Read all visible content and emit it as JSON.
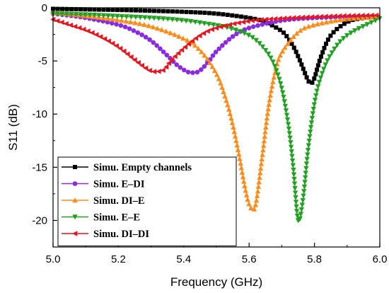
{
  "chart_data": {
    "type": "line",
    "xlabel": "Frequency (GHz)",
    "ylabel": "S11 (dB)",
    "xlim": [
      5.0,
      6.0
    ],
    "ylim": [
      -22.5,
      0
    ],
    "xticks": [
      "5.0",
      "5.2",
      "5.4",
      "5.6",
      "5.8",
      "6.0"
    ],
    "yticks": [
      "0",
      "-5",
      "-10",
      "-15",
      "-20"
    ],
    "grid": false,
    "legend_position": "lower-left",
    "series": [
      {
        "name": "Simu. Empty channels",
        "color": "#000000",
        "marker": "square",
        "x": [
          5.0,
          5.1,
          5.2,
          5.3,
          5.4,
          5.5,
          5.6,
          5.65,
          5.7,
          5.72,
          5.74,
          5.76,
          5.78,
          5.79,
          5.8,
          5.82,
          5.85,
          5.9,
          5.95,
          6.0
        ],
        "y": [
          -0.1,
          -0.15,
          -0.2,
          -0.28,
          -0.38,
          -0.55,
          -0.95,
          -1.35,
          -2.2,
          -2.9,
          -3.9,
          -5.3,
          -6.8,
          -7.1,
          -6.6,
          -4.6,
          -2.6,
          -1.35,
          -0.95,
          -0.8
        ]
      },
      {
        "name": "Simu. E–DI",
        "color": "#8a2be2",
        "marker": "circle",
        "x": [
          5.0,
          5.1,
          5.2,
          5.25,
          5.3,
          5.35,
          5.38,
          5.41,
          5.43,
          5.45,
          5.48,
          5.5,
          5.55,
          5.6,
          5.7,
          5.8,
          5.9,
          6.0
        ],
        "y": [
          -0.55,
          -0.95,
          -1.6,
          -2.2,
          -3.1,
          -4.5,
          -5.4,
          -6.0,
          -6.1,
          -5.9,
          -4.9,
          -4.1,
          -2.7,
          -1.9,
          -1.2,
          -0.95,
          -0.85,
          -0.8
        ]
      },
      {
        "name": "Simu. DI–E",
        "color": "#ff8c1a",
        "marker": "triangle",
        "x": [
          5.0,
          5.1,
          5.2,
          5.3,
          5.4,
          5.45,
          5.5,
          5.53,
          5.55,
          5.57,
          5.59,
          5.605,
          5.62,
          5.64,
          5.66,
          5.68,
          5.7,
          5.75,
          5.8,
          5.9,
          6.0
        ],
        "y": [
          -0.45,
          -0.75,
          -1.15,
          -1.75,
          -2.9,
          -4.0,
          -6.2,
          -8.7,
          -11.0,
          -14.0,
          -17.3,
          -18.8,
          -18.5,
          -14.0,
          -9.2,
          -6.0,
          -4.2,
          -2.3,
          -1.6,
          -1.05,
          -0.85
        ]
      },
      {
        "name": "Simu. E–E",
        "color": "#22a022",
        "marker": "triangle-down",
        "x": [
          5.0,
          5.1,
          5.2,
          5.3,
          5.4,
          5.5,
          5.55,
          5.6,
          5.63,
          5.66,
          5.68,
          5.7,
          5.72,
          5.735,
          5.75,
          5.765,
          5.78,
          5.8,
          5.82,
          5.85,
          5.9,
          6.0
        ],
        "y": [
          -0.55,
          -0.65,
          -0.8,
          -0.95,
          -1.2,
          -1.65,
          -2.0,
          -2.6,
          -3.3,
          -4.4,
          -5.6,
          -7.6,
          -11.0,
          -15.0,
          -20.0,
          -18.0,
          -13.5,
          -9.0,
          -6.5,
          -4.4,
          -2.6,
          -1.0
        ]
      },
      {
        "name": "Simu. DI–DI",
        "color": "#e8141e",
        "marker": "triangle-left",
        "x": [
          5.0,
          5.05,
          5.1,
          5.15,
          5.2,
          5.25,
          5.28,
          5.3,
          5.32,
          5.34,
          5.36,
          5.4,
          5.45,
          5.5,
          5.6,
          5.7,
          5.8,
          5.9,
          6.0
        ],
        "y": [
          -1.1,
          -1.6,
          -2.1,
          -2.8,
          -3.7,
          -4.9,
          -5.6,
          -5.95,
          -6.0,
          -5.8,
          -5.0,
          -3.8,
          -2.6,
          -1.9,
          -1.25,
          -1.0,
          -0.85,
          -0.75,
          -0.7
        ]
      }
    ]
  }
}
